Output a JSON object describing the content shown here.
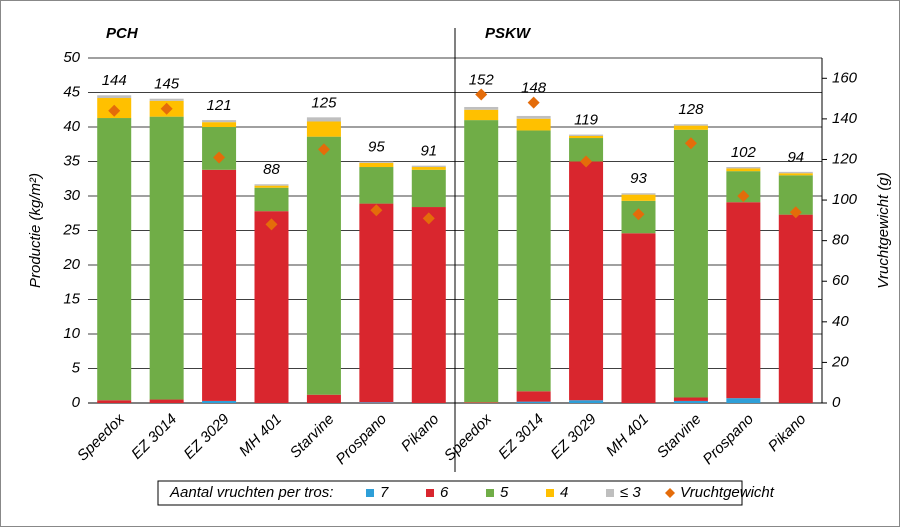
{
  "chart_data": {
    "type": "bar",
    "stacked": true,
    "groups": [
      "PCH",
      "PSKW"
    ],
    "categories": [
      "Speedox",
      "EZ 3014",
      "EZ 3029",
      "MH 401",
      "Starvine",
      "Prospano",
      "Pikano",
      "Speedox",
      "EZ 3014",
      "EZ 3029",
      "MH 401",
      "Starvine",
      "Prospano",
      "Pikano"
    ],
    "ylabel": "Productie (kg/m²)",
    "y2label": "Vruchtgewicht (g)",
    "ylim": [
      0,
      50
    ],
    "yticks": [
      0,
      5,
      10,
      15,
      20,
      25,
      30,
      35,
      40,
      45,
      50
    ],
    "y2lim": [
      0,
      170
    ],
    "y2ticks": [
      0,
      20,
      40,
      60,
      80,
      100,
      120,
      140,
      160
    ],
    "grid": true,
    "legend_title": "Aantal vruchten per tros:",
    "legend": "bottom",
    "series": [
      {
        "name": "7",
        "color": "#2e9fd8",
        "values": [
          0,
          0,
          0.3,
          0,
          0,
          0.1,
          0,
          0,
          0.2,
          0.4,
          0,
          0.3,
          0.7,
          0
        ]
      },
      {
        "name": "6",
        "color": "#d9262e",
        "values": [
          0.4,
          0.5,
          33.5,
          27.8,
          1.2,
          28.8,
          28.4,
          0.1,
          1.5,
          34.6,
          24.6,
          0.5,
          28.4,
          27.3
        ]
      },
      {
        "name": "5",
        "color": "#70ad47",
        "values": [
          40.9,
          41.0,
          6.2,
          3.4,
          37.4,
          5.3,
          5.4,
          40.9,
          37.8,
          3.4,
          4.7,
          38.8,
          4.5,
          5.7
        ]
      },
      {
        "name": "4",
        "color": "#ffc000",
        "values": [
          2.9,
          2.3,
          0.7,
          0.3,
          2.2,
          0.6,
          0.4,
          1.5,
          1.7,
          0.3,
          0.9,
          0.6,
          0.4,
          0.3
        ]
      },
      {
        "name": "≤ 3",
        "color": "#bfbfbf",
        "values": [
          0.4,
          0.3,
          0.3,
          0.2,
          0.6,
          0.2,
          0.2,
          0.4,
          0.4,
          0.2,
          0.2,
          0.2,
          0.2,
          0.2
        ]
      },
      {
        "name": "Vruchtgewicht",
        "color": "#e46c0a",
        "type": "scatter",
        "marker": "diamond",
        "axis": "y2",
        "values": [
          144,
          145,
          121,
          88,
          125,
          95,
          91,
          152,
          148,
          119,
          93,
          128,
          102,
          94
        ]
      }
    ]
  }
}
